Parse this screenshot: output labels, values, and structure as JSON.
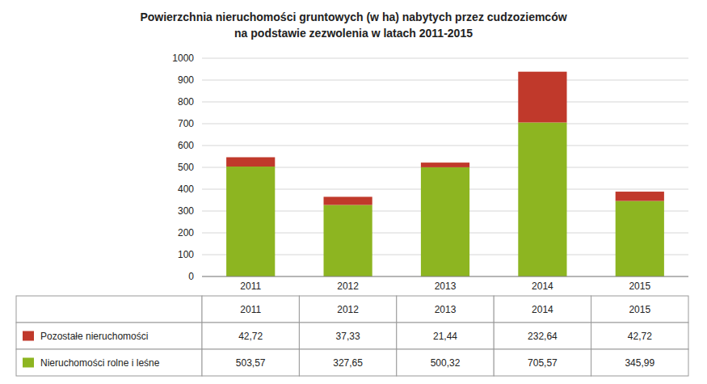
{
  "chart_data": {
    "type": "bar",
    "stacked": true,
    "grid": true,
    "title": "Powierzchnia nieruchomości gruntowych (w ha) nabytych przez cudzoziemców",
    "subtitle": "na podstawie zezwolenia w latach 2011-2015",
    "categories": [
      "2011",
      "2012",
      "2013",
      "2014",
      "2015"
    ],
    "series": [
      {
        "name": "Nieruchomości rolne i leśne",
        "color": "#8db521",
        "values": [
          503.57,
          327.65,
          500.32,
          705.57,
          345.99
        ],
        "value_labels": [
          "503,57",
          "327,65",
          "500,32",
          "705,57",
          "345,99"
        ]
      },
      {
        "name": "Pozostałe nieruchomości",
        "color": "#c0392b",
        "values": [
          42.72,
          37.33,
          21.44,
          232.64,
          42.72
        ],
        "value_labels": [
          "42,72",
          "37,33",
          "21,44",
          "232,64",
          "42,72"
        ]
      }
    ],
    "ylim": [
      0,
      1000
    ],
    "yticks": [
      0,
      100,
      200,
      300,
      400,
      500,
      600,
      700,
      800,
      900,
      1000
    ]
  }
}
